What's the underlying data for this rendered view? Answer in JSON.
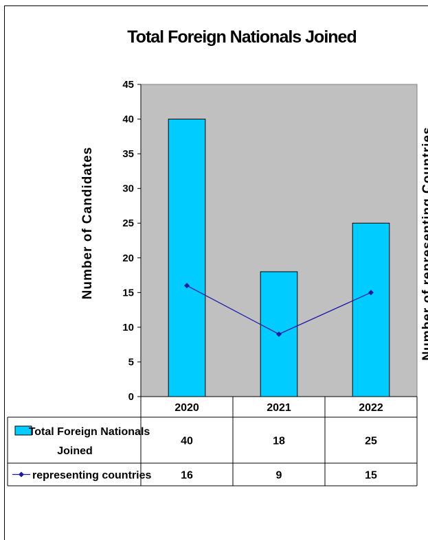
{
  "chart_data": {
    "type": "bar",
    "title": "Total Foreign Nationals Joined",
    "categories": [
      "2020",
      "2021",
      "2022"
    ],
    "ylabel": "Number of Candidates",
    "y2label": "Number of representing Countries",
    "ylim": [
      0,
      45
    ],
    "yticks": [
      0,
      5,
      10,
      15,
      20,
      25,
      30,
      35,
      40,
      45
    ],
    "grid": false,
    "plot_background": "#c0c0c0",
    "series": [
      {
        "name": "Total Foreign Nationals Joined",
        "type": "bar",
        "values": [
          40,
          18,
          25
        ],
        "color": "#00ccff"
      },
      {
        "name": "representing countries",
        "type": "line",
        "values": [
          16,
          9,
          15
        ],
        "color": "#1a1aa6",
        "marker": "diamond"
      }
    ],
    "data_table": {
      "rows": [
        {
          "label": "Total Foreign Nationals Joined",
          "label_lines": [
            "Total Foreign Nationals",
            "Joined"
          ],
          "values": [
            "40",
            "18",
            "25"
          ]
        },
        {
          "label": "representing countries",
          "values": [
            "16",
            "9",
            "15"
          ]
        }
      ]
    }
  }
}
